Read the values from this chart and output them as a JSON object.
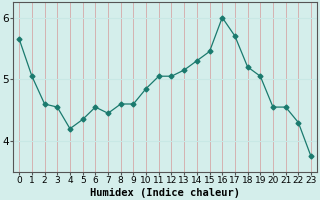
{
  "x": [
    0,
    1,
    2,
    3,
    4,
    5,
    6,
    7,
    8,
    9,
    10,
    11,
    12,
    13,
    14,
    15,
    16,
    17,
    18,
    19,
    20,
    21,
    22,
    23
  ],
  "y": [
    5.65,
    5.05,
    4.6,
    4.55,
    4.2,
    4.35,
    4.55,
    4.45,
    4.6,
    4.6,
    4.85,
    5.05,
    5.05,
    5.15,
    5.3,
    5.45,
    6.0,
    5.7,
    5.2,
    5.05,
    4.55,
    4.55,
    4.3,
    3.75
  ],
  "line_color": "#1a7a6e",
  "marker": "D",
  "marker_size": 2.5,
  "bg_color": "#d4eeeb",
  "vgrid_color": "#d4a8a8",
  "hgrid_color": "#c8e8e5",
  "axis_color": "#555555",
  "xlabel": "Humidex (Indice chaleur)",
  "ylim": [
    3.5,
    6.25
  ],
  "xlim": [
    -0.5,
    23.5
  ],
  "yticks": [
    4,
    5,
    6
  ],
  "xticks": [
    0,
    1,
    2,
    3,
    4,
    5,
    6,
    7,
    8,
    9,
    10,
    11,
    12,
    13,
    14,
    15,
    16,
    17,
    18,
    19,
    20,
    21,
    22,
    23
  ],
  "xlabel_fontsize": 7.5,
  "tick_fontsize": 6.5,
  "ytick_fontsize": 7.5
}
